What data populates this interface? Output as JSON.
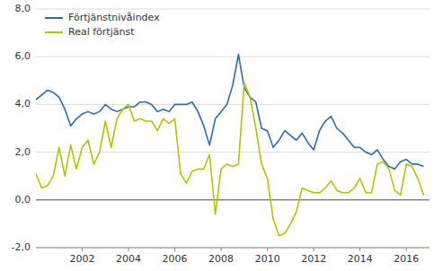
{
  "chart_data": {
    "type": "line",
    "x": [
      2000,
      2000.25,
      2000.5,
      2000.75,
      2001,
      2001.25,
      2001.5,
      2001.75,
      2002,
      2002.25,
      2002.5,
      2002.75,
      2003,
      2003.25,
      2003.5,
      2003.75,
      2004,
      2004.25,
      2004.5,
      2004.75,
      2005,
      2005.25,
      2005.5,
      2005.75,
      2006,
      2006.25,
      2006.5,
      2006.75,
      2007,
      2007.25,
      2007.5,
      2007.75,
      2008,
      2008.25,
      2008.5,
      2008.75,
      2009,
      2009.25,
      2009.5,
      2009.75,
      2010,
      2010.25,
      2010.5,
      2010.75,
      2011,
      2011.25,
      2011.5,
      2011.75,
      2012,
      2012.25,
      2012.5,
      2012.75,
      2013,
      2013.25,
      2013.5,
      2013.75,
      2014,
      2014.25,
      2014.5,
      2014.75,
      2015,
      2015.25,
      2015.5,
      2015.75,
      2016,
      2016.25,
      2016.5,
      2016.75
    ],
    "series": [
      {
        "name": "Förtjänstnivåindex",
        "color": "#2b6cb0",
        "values": [
          4.2,
          4.4,
          4.6,
          4.5,
          4.3,
          3.8,
          3.1,
          3.4,
          3.6,
          3.7,
          3.6,
          3.7,
          4.0,
          3.8,
          3.7,
          3.8,
          3.9,
          3.9,
          4.1,
          4.1,
          4.0,
          3.7,
          3.8,
          3.7,
          4.0,
          4.0,
          4.0,
          4.1,
          3.7,
          3.1,
          2.3,
          3.4,
          3.7,
          4.0,
          4.8,
          6.1,
          4.7,
          4.3,
          4.1,
          3.0,
          2.9,
          2.2,
          2.5,
          2.9,
          2.7,
          2.5,
          2.8,
          2.4,
          2.1,
          2.9,
          3.3,
          3.5,
          3.0,
          2.8,
          2.5,
          2.2,
          2.2,
          2.0,
          1.9,
          2.1,
          1.7,
          1.4,
          1.3,
          1.6,
          1.7,
          1.5,
          1.5,
          1.4
        ]
      },
      {
        "name": "Real förtjänst",
        "color": "#b5c400",
        "values": [
          1.1,
          0.5,
          0.6,
          1.0,
          2.2,
          1.0,
          2.3,
          1.3,
          2.2,
          2.5,
          1.5,
          2.0,
          3.3,
          2.2,
          3.4,
          3.8,
          4.0,
          3.3,
          3.4,
          3.3,
          3.3,
          2.9,
          3.4,
          3.2,
          3.4,
          1.1,
          0.7,
          1.2,
          1.3,
          1.3,
          1.9,
          -0.6,
          1.3,
          1.5,
          1.4,
          1.5,
          4.9,
          4.3,
          3.0,
          1.5,
          0.9,
          -0.8,
          -1.5,
          -1.4,
          -1.0,
          -0.5,
          0.5,
          0.4,
          0.3,
          0.3,
          0.5,
          0.8,
          0.4,
          0.3,
          0.3,
          0.5,
          0.9,
          0.3,
          0.3,
          1.5,
          1.6,
          1.3,
          0.4,
          0.2,
          1.5,
          1.4,
          0.9,
          0.2
        ]
      }
    ],
    "xlim": [
      2000,
      2017
    ],
    "xticks": [
      2002,
      2004,
      2006,
      2008,
      2010,
      2012,
      2014,
      2016
    ],
    "ylim": [
      -2.0,
      8.0
    ],
    "yticks": [
      {
        "value": -2.0,
        "label": "-2,0"
      },
      {
        "value": 0.0,
        "label": "0,0"
      },
      {
        "value": 2.0,
        "label": "2,0"
      },
      {
        "value": 4.0,
        "label": "4,0"
      },
      {
        "value": 6.0,
        "label": "6,0"
      },
      {
        "value": 8.0,
        "label": "8,0"
      }
    ],
    "grid": true,
    "legend": "upper left"
  }
}
